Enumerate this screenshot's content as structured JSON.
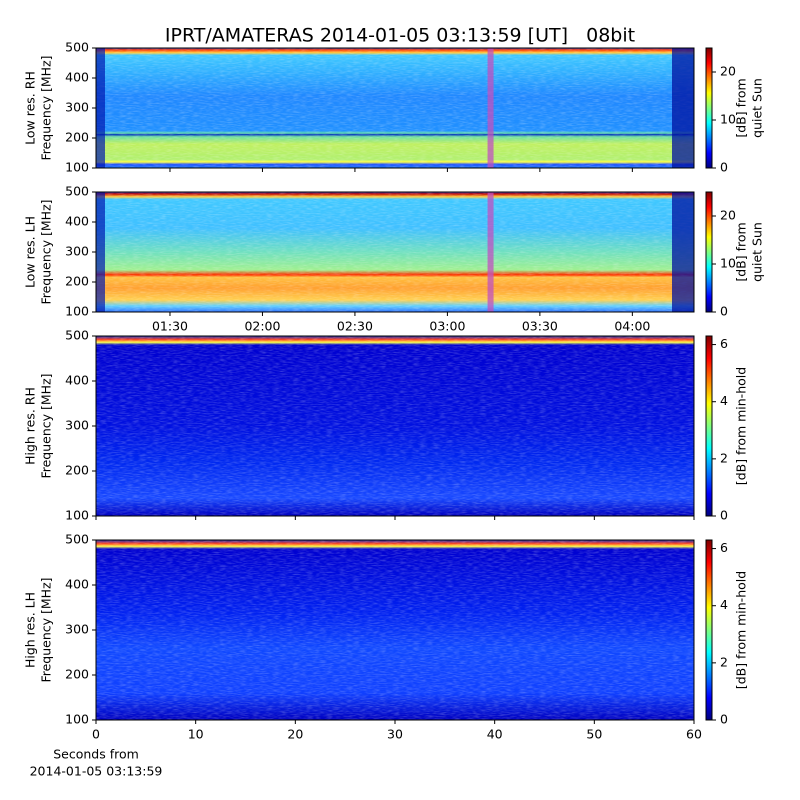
{
  "title": "IPRT/AMATERAS 2014-01-05 03:13:59 [UT]   08bit",
  "chart_data": [
    {
      "type": "heatmap",
      "ylabel": [
        "Low res. RH",
        "Frequency [MHz]"
      ],
      "ylim": [
        100,
        500
      ],
      "yticks": [
        100,
        200,
        300,
        400,
        500
      ],
      "colorbar_label": [
        "[dB] from",
        "quiet Sun"
      ],
      "clim": [
        0,
        25
      ],
      "cticks": [
        0,
        10,
        20
      ],
      "colormap": "jet",
      "time_marker": "03:14"
    },
    {
      "type": "heatmap",
      "ylabel": [
        "Low res. LH",
        "Frequency [MHz]"
      ],
      "ylim": [
        100,
        500
      ],
      "yticks": [
        100,
        200,
        300,
        400,
        500
      ],
      "colorbar_label": [
        "[dB] from",
        "quiet Sun"
      ],
      "clim": [
        0,
        25
      ],
      "cticks": [
        0,
        10,
        20
      ],
      "colormap": "jet",
      "time_marker": "03:14",
      "xlim": [
        "01:06",
        "04:20"
      ],
      "xticks": [
        "01:30",
        "02:00",
        "02:30",
        "03:00",
        "03:30",
        "04:00"
      ]
    },
    {
      "type": "heatmap",
      "ylabel": [
        "High res. RH",
        "Frequency [MHz]"
      ],
      "ylim": [
        100,
        500
      ],
      "yticks": [
        100,
        200,
        300,
        400,
        500
      ],
      "colorbar_label": [
        "[dB] from min-hold"
      ],
      "clim": [
        0,
        6.3
      ],
      "cticks": [
        0,
        2,
        4,
        6
      ],
      "colormap": "jet"
    },
    {
      "type": "heatmap",
      "ylabel": [
        "High res. LH",
        "Frequency [MHz]"
      ],
      "ylim": [
        100,
        500
      ],
      "yticks": [
        100,
        200,
        300,
        400,
        500
      ],
      "colorbar_label": [
        "[dB] from min-hold"
      ],
      "clim": [
        0,
        6.3
      ],
      "cticks": [
        0,
        2,
        4,
        6
      ],
      "colormap": "jet",
      "xlim": [
        0,
        60
      ],
      "xticks": [
        0,
        10,
        20,
        30,
        40,
        50,
        60
      ],
      "xlabel": [
        "Seconds from",
        "2014-01-05 03:13:59"
      ]
    }
  ]
}
